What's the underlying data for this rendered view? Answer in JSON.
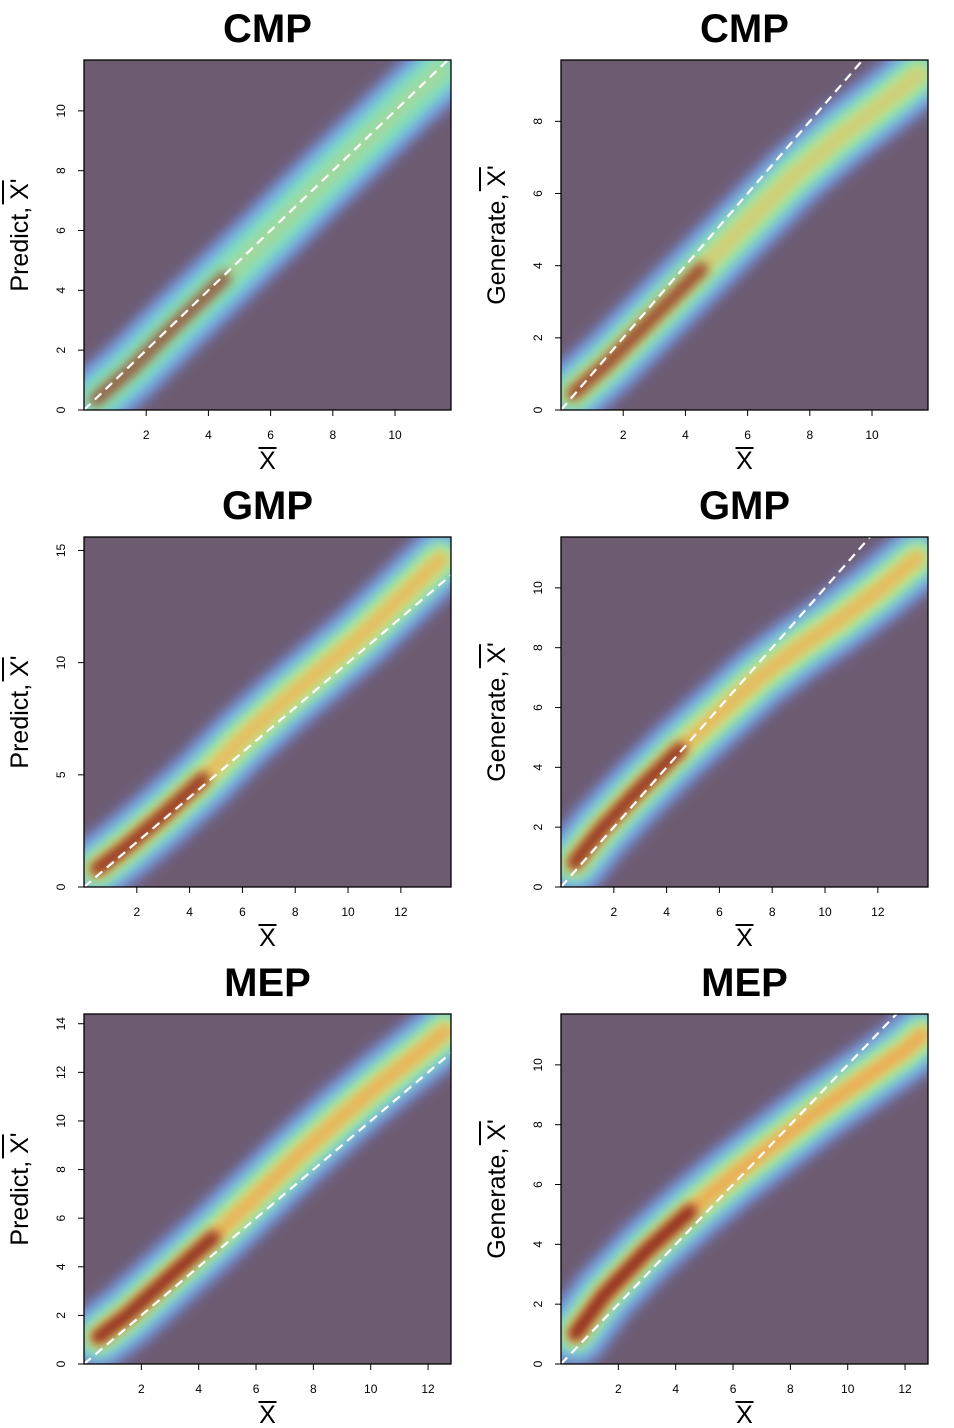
{
  "chart_data": [
    {
      "type": "heatmap",
      "title": "CMP",
      "xlabel": "X",
      "ylabel": "Predict, X'",
      "xlim": [
        0,
        11.8
      ],
      "ylim": [
        0,
        11.7
      ],
      "xticks": [
        2,
        4,
        6,
        8,
        10
      ],
      "yticks": [
        0,
        2,
        4,
        6,
        8,
        10
      ],
      "reference_line": {
        "style": "dashed",
        "color": "#ffffff",
        "slope": 1.0,
        "intercept": 0
      },
      "density_ridge": {
        "x": [
          0.4,
          1.5,
          3,
          4.5,
          6,
          7.5,
          9,
          10.5,
          11.5
        ],
        "y": [
          0.35,
          1.35,
          2.9,
          4.4,
          5.9,
          7.45,
          8.95,
          10.45,
          11.4
        ]
      },
      "grid": false,
      "legend": "none"
    },
    {
      "type": "heatmap",
      "title": "CMP",
      "xlabel": "X",
      "ylabel": "Generate, X'",
      "xlim": [
        0,
        11.8
      ],
      "ylim": [
        0,
        9.7
      ],
      "xticks": [
        2,
        4,
        6,
        8,
        10
      ],
      "yticks": [
        0,
        2,
        4,
        6,
        8
      ],
      "reference_line": {
        "style": "dashed",
        "color": "#ffffff",
        "slope": 1.0,
        "intercept": 0
      },
      "density_ridge": {
        "x": [
          0.4,
          1.5,
          3,
          4.5,
          6,
          7.5,
          9,
          10.5,
          11.5
        ],
        "y": [
          0.45,
          1.3,
          2.6,
          3.9,
          5.2,
          6.5,
          7.6,
          8.6,
          9.3
        ]
      },
      "grid": false,
      "legend": "none"
    },
    {
      "type": "heatmap",
      "title": "GMP",
      "xlabel": "X",
      "ylabel": "Predict, X'",
      "xlim": [
        0,
        13.9
      ],
      "ylim": [
        0,
        15.6
      ],
      "xticks": [
        2,
        4,
        6,
        8,
        10,
        12
      ],
      "yticks": [
        0,
        5,
        10,
        15
      ],
      "reference_line": {
        "style": "dashed",
        "color": "#ffffff",
        "slope": 1.0,
        "intercept": 0
      },
      "density_ridge": {
        "x": [
          0.5,
          1.5,
          3,
          4.5,
          6,
          7.5,
          9,
          10.5,
          12,
          13.5
        ],
        "y": [
          0.8,
          1.7,
          3.2,
          4.8,
          6.6,
          8.2,
          9.7,
          11.2,
          12.9,
          14.6
        ]
      },
      "grid": false,
      "legend": "none"
    },
    {
      "type": "heatmap",
      "title": "GMP",
      "xlabel": "X",
      "ylabel": "Generate, X'",
      "xlim": [
        0,
        13.9
      ],
      "ylim": [
        0,
        11.7
      ],
      "xticks": [
        2,
        4,
        6,
        8,
        10,
        12
      ],
      "yticks": [
        0,
        2,
        4,
        6,
        8,
        10
      ],
      "reference_line": {
        "style": "dashed",
        "color": "#ffffff",
        "slope": 1.0,
        "intercept": 0
      },
      "density_ridge": {
        "x": [
          0.5,
          1.5,
          3,
          4.5,
          6,
          7.5,
          9,
          10.5,
          12,
          13.5
        ],
        "y": [
          0.8,
          1.9,
          3.3,
          4.6,
          5.8,
          7.0,
          8.0,
          8.9,
          9.9,
          11.0
        ]
      },
      "grid": false,
      "legend": "none"
    },
    {
      "type": "heatmap",
      "title": "MEP",
      "xlabel": "X",
      "ylabel": "Predict, X'",
      "xlim": [
        0,
        12.8
      ],
      "ylim": [
        0,
        14.4
      ],
      "xticks": [
        2,
        4,
        6,
        8,
        10,
        12
      ],
      "yticks": [
        0,
        2,
        4,
        6,
        8,
        10,
        12,
        14
      ],
      "reference_line": {
        "style": "dashed",
        "color": "#ffffff",
        "slope": 1.0,
        "intercept": 0
      },
      "density_ridge": {
        "x": [
          0.5,
          1.5,
          3,
          4.5,
          6,
          7.5,
          9,
          10.5,
          12,
          12.6
        ],
        "y": [
          1.1,
          2.0,
          3.6,
          5.2,
          6.9,
          8.6,
          10.2,
          11.7,
          13.1,
          13.7
        ]
      },
      "grid": false,
      "legend": "none"
    },
    {
      "type": "heatmap",
      "title": "MEP",
      "xlabel": "X",
      "ylabel": "Generate, X'",
      "xlim": [
        0,
        12.8
      ],
      "ylim": [
        0,
        11.7
      ],
      "xticks": [
        2,
        4,
        6,
        8,
        10,
        12
      ],
      "yticks": [
        0,
        2,
        4,
        6,
        8,
        10
      ],
      "reference_line": {
        "style": "dashed",
        "color": "#ffffff",
        "slope": 1.0,
        "intercept": 0
      },
      "density_ridge": {
        "x": [
          0.5,
          1.5,
          3,
          4.5,
          6,
          7.5,
          9,
          10.5,
          12,
          12.6
        ],
        "y": [
          1.0,
          2.3,
          3.8,
          5.1,
          6.3,
          7.4,
          8.5,
          9.5,
          10.5,
          11.0
        ]
      },
      "grid": false,
      "legend": "none"
    }
  ],
  "colors": {
    "background": "#6d5b72",
    "low": "#7a9cf5",
    "mid_low": "#6fe0c8",
    "mid": "#d9f07a",
    "mid_high": "#f2a14e",
    "high": "#8e2a1e",
    "reference_line": "#ffffff"
  }
}
